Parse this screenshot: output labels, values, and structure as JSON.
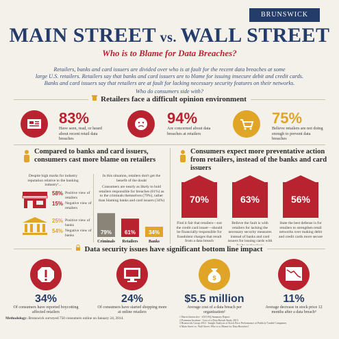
{
  "brand": "BRUNSWICK",
  "title": {
    "main_a": "MAIN STREET",
    "vs": " vs. ",
    "main_b": "WALL STREET"
  },
  "subtitle": "Who is to Blame for Data Breaches?",
  "intro": {
    "line1": "Retailers, banks and card issuers are divided over who is at fault for the recent data breaches at some",
    "line2": "large U.S. retailers. Retailers say that banks and card issuers are to blame for issuing insecure debit and credit cards.",
    "line3": "Banks and card issuers say that retailers are at fault for lacking necessary security features on their networks.",
    "line4": "Who do consumers side with?"
  },
  "section1": {
    "heading": "Retailers face a difficult opinion environment",
    "stats": [
      {
        "value": "83%",
        "text": "Have seen, read, or heard about recent retail data breaches",
        "icon": "newspaper-icon"
      },
      {
        "value": "94%",
        "text": "Are concerned about data breaches at retailers",
        "icon": "worried-face-icon"
      },
      {
        "value": "75%",
        "text": "Believe retailers are not doing enough to prevent data breaches",
        "icon": "shopping-cart-icon"
      }
    ]
  },
  "section2": {
    "heading": "Compared to banks and card issuers, consumers cast more blame on retailers",
    "left_intro": "Despite high marks for industry reputation relative to the banking industry¹...",
    "retail_pos": {
      "value": "58%",
      "label": "Positive view of retailers"
    },
    "retail_neg": {
      "value": "15%",
      "label": "Negative view of retailers"
    },
    "bank_pos": {
      "value": "25%",
      "label": "Positive view of banks"
    },
    "bank_neg": {
      "value": "54%",
      "label": "Negative view of banks"
    },
    "mid_intro": "In this situation, retailers don't get the benefit of the doubt",
    "mid_text": "Consumers are nearly as likely to hold retailers responsible for breaches (61%) as to the criminals themselves (79%), rather than blaming banks and card issuers (34%)"
  },
  "chart_data": {
    "type": "bar",
    "categories": [
      "Criminals",
      "Retailers",
      "Banks"
    ],
    "values": [
      79,
      61,
      34
    ],
    "value_labels": [
      "79%",
      "61%",
      "34%"
    ],
    "ylim": [
      0,
      100
    ]
  },
  "section3": {
    "heading": "Consumers expect more preventative action from retailers, instead of the banks and card issuers",
    "tags": [
      {
        "value": "70%",
        "text": "Find it fair that retailers—not the credit card issuer—should be financially responsible for fraudulent charges that result from a data breach"
      },
      {
        "value": "63%",
        "text": "Believe the fault is with retailers for lacking the necessary security measures instead of banks and card issuers for issuing cards with faulty technology"
      },
      {
        "value": "56%",
        "text": "State the best defense is for retailers to strengthen retail networks over making debit and credit cards more secure"
      }
    ]
  },
  "section4": {
    "heading": "Data security issues have significant bottom line impact",
    "stats": [
      {
        "value": "34%",
        "text": "Of consumers have reported boycotting affected retailers",
        "icon": "stop-sign-icon"
      },
      {
        "value": "24%",
        "text": "Of consumers have started shopping more at online retailers",
        "icon": "monitor-icon"
      },
      {
        "value": "$5.5 million",
        "text": "Average cost of a data breach per organization²",
        "icon": "money-bag-icon"
      },
      {
        "value": "11%",
        "text": "Average decrease in stock price 12 months after a data breach³",
        "icon": "decline-chart-icon"
      }
    ]
  },
  "footer": {
    "methodology_label": "Methodology:",
    "methodology": " Brunswick surveyed 750 consumers online on January 24, 2014.",
    "notes": [
      "1 Harris Interactive - 2013 RQ Summary Report",
      "2 Ponemon Institute - Cost of a Data Breach Study 2013",
      "3 Brunswick Group 2014 - Insight Analysis of Stock Price Performance of Publicly Traded Companies",
      "4 Main Street vs. Wall Street: Who is to Blame for Data Breaches?"
    ]
  },
  "colors": {
    "navy": "#243c69",
    "red": "#b8232f",
    "gold": "#e0a526",
    "beige": "#f4f1ea"
  }
}
